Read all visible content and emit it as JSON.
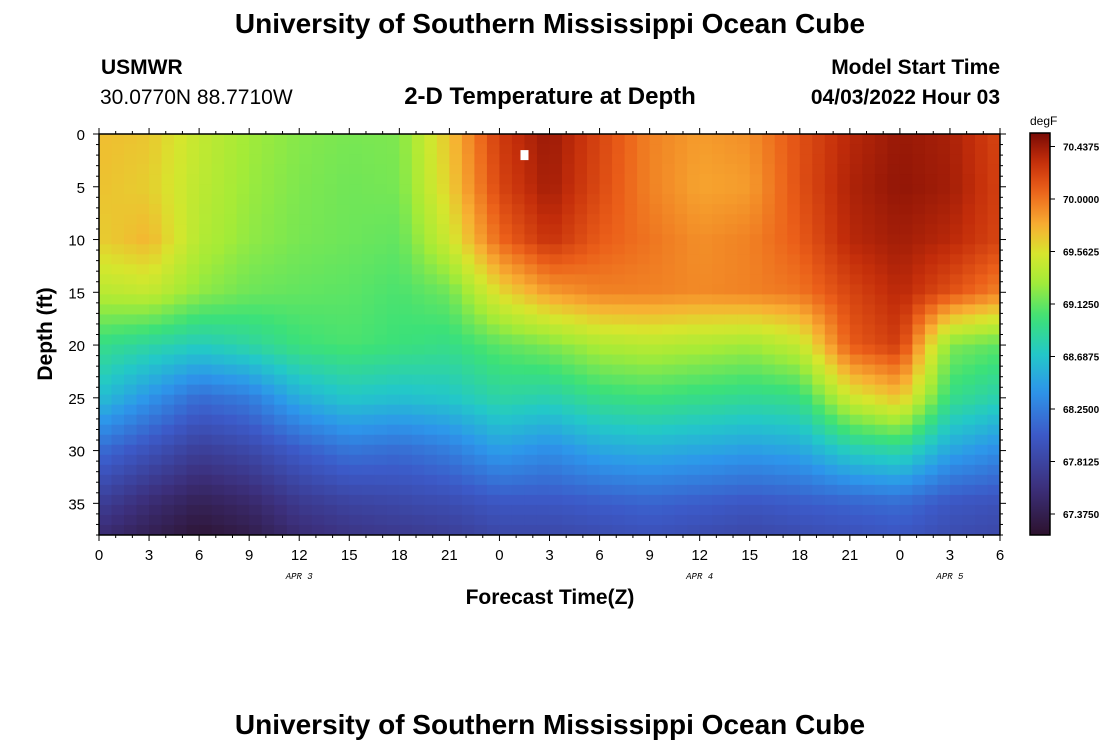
{
  "header": {
    "title": "University of Southern Mississippi Ocean Cube",
    "station": "USMWR",
    "location": "30.0770N  88.7710W",
    "plot_title": "2-D Temperature at Depth",
    "model_label": "Model Start Time",
    "model_time": "04/03/2022 Hour 03"
  },
  "footer": {
    "title": "University of Southern Mississippi Ocean Cube"
  },
  "chart_data": {
    "type": "heatmap",
    "title": "2-D Temperature at Depth",
    "xlabel": "Forecast Time(Z)",
    "ylabel": "Depth (ft)",
    "x_unit": "hours since 04/03 00Z",
    "xlim": [
      0,
      54
    ],
    "ylim": [
      38,
      0
    ],
    "x_ticks": [
      0,
      3,
      6,
      9,
      12,
      15,
      18,
      21,
      24,
      27,
      30,
      33,
      36,
      39,
      42,
      45,
      48,
      51,
      54
    ],
    "x_tick_labels": [
      "0",
      "3",
      "6",
      "9",
      "12",
      "15",
      "18",
      "21",
      "0",
      "3",
      "6",
      "9",
      "12",
      "15",
      "18",
      "21",
      "0",
      "3",
      "6"
    ],
    "y_ticks": [
      0,
      5,
      10,
      15,
      20,
      25,
      30,
      35
    ],
    "y_tick_labels": [
      "0",
      "5",
      "10",
      "15",
      "20",
      "25",
      "30",
      "35"
    ],
    "date_labels": [
      {
        "x": 12,
        "text": "APR 3"
      },
      {
        "x": 36,
        "text": "APR 4"
      },
      {
        "x": 51,
        "text": "APR 5"
      }
    ],
    "colorbar": {
      "unit": "degF",
      "min": 67.2,
      "max": 70.55,
      "tick_values": [
        70.4375,
        70.0,
        69.5625,
        69.125,
        68.6875,
        68.25,
        67.8125,
        67.375
      ],
      "tick_labels": [
        "70.4375",
        "70.0000",
        "69.5625",
        "69.1250",
        "68.6875",
        "68.2500",
        "67.8125",
        "67.3750"
      ]
    },
    "time_hours": [
      0,
      3,
      6,
      9,
      12,
      15,
      18,
      21,
      24,
      27,
      30,
      33,
      36,
      39,
      42,
      45,
      48,
      51,
      54
    ],
    "depth_ft": [
      0,
      5,
      10,
      15,
      20,
      25,
      30,
      35,
      38
    ],
    "values_degF": [
      [
        69.72,
        69.68,
        69.45,
        69.3,
        69.22,
        69.18,
        69.2,
        69.7,
        70.25,
        70.45,
        70.2,
        69.95,
        69.85,
        69.9,
        70.15,
        70.35,
        70.45,
        70.4,
        70.2
      ],
      [
        69.7,
        69.65,
        69.42,
        69.28,
        69.2,
        69.16,
        69.18,
        69.65,
        70.2,
        70.42,
        70.18,
        69.95,
        69.82,
        69.85,
        70.15,
        70.38,
        70.47,
        70.42,
        70.22
      ],
      [
        69.65,
        69.75,
        69.38,
        69.25,
        69.18,
        69.15,
        69.12,
        69.5,
        70.05,
        70.3,
        70.1,
        70.0,
        69.9,
        69.95,
        70.1,
        70.35,
        70.42,
        70.35,
        70.2
      ],
      [
        69.4,
        69.45,
        69.25,
        69.15,
        69.12,
        69.1,
        69.05,
        69.15,
        69.6,
        69.85,
        69.95,
        69.95,
        69.92,
        69.95,
        70.0,
        70.2,
        70.35,
        70.15,
        69.95
      ],
      [
        68.95,
        68.85,
        68.75,
        68.85,
        69.0,
        69.05,
        69.0,
        68.95,
        69.1,
        69.2,
        69.35,
        69.4,
        69.35,
        69.3,
        69.45,
        70.1,
        70.25,
        69.2,
        69.1
      ],
      [
        68.65,
        68.4,
        68.15,
        68.25,
        68.55,
        68.7,
        68.65,
        68.7,
        68.85,
        68.8,
        68.95,
        69.0,
        68.95,
        68.9,
        68.95,
        69.5,
        69.7,
        68.95,
        68.8
      ],
      [
        68.15,
        67.95,
        67.75,
        67.85,
        68.05,
        68.2,
        68.15,
        68.25,
        68.45,
        68.35,
        68.5,
        68.55,
        68.5,
        68.45,
        68.5,
        68.75,
        68.85,
        68.5,
        68.35
      ],
      [
        67.75,
        67.55,
        67.4,
        67.5,
        67.7,
        67.8,
        67.85,
        67.9,
        68.0,
        68.0,
        68.05,
        68.1,
        68.05,
        68.0,
        68.05,
        68.1,
        68.15,
        68.0,
        67.95
      ],
      [
        67.55,
        67.4,
        67.25,
        67.35,
        67.55,
        67.65,
        67.7,
        67.75,
        67.85,
        67.85,
        67.9,
        67.95,
        67.9,
        67.85,
        67.9,
        67.95,
        68.0,
        67.9,
        67.85
      ]
    ],
    "marker": {
      "x": 25.5,
      "y": 2
    }
  }
}
